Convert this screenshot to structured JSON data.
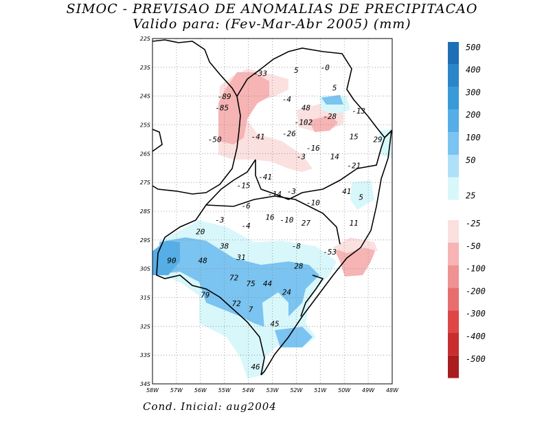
{
  "title_line1": "SIMOC - PREVISAO DE ANOMALIAS DE PRECIPITACAO",
  "title_line2": "Valido para: (Fev-Mar-Abr 2005) (mm)",
  "footer": "Cond. Inicial: aug2004",
  "map": {
    "lon_range": [
      -58,
      -48
    ],
    "lat_range": [
      -34,
      -22
    ],
    "x_ticks": [
      "58W",
      "57W",
      "56W",
      "55W",
      "54W",
      "53W",
      "52W",
      "51W",
      "50W",
      "49W",
      "48W"
    ],
    "y_ticks": [
      "22S",
      "23S",
      "24S",
      "25S",
      "26S",
      "27S",
      "28S",
      "29S",
      "30S",
      "31S",
      "32S",
      "33S",
      "34S"
    ],
    "grid": true,
    "anomaly_labels": [
      {
        "text": "-33",
        "lon": -53.5,
        "lat": -23.3
      },
      {
        "text": "5",
        "lon": -52.0,
        "lat": -23.2
      },
      {
        "text": "-0",
        "lon": -50.8,
        "lat": -23.1
      },
      {
        "text": "5",
        "lon": -50.4,
        "lat": -23.8
      },
      {
        "text": "-89",
        "lon": -55.0,
        "lat": -24.1
      },
      {
        "text": "-4",
        "lon": -52.4,
        "lat": -24.2
      },
      {
        "text": "-85",
        "lon": -55.1,
        "lat": -24.5
      },
      {
        "text": "48",
        "lon": -51.6,
        "lat": -24.5
      },
      {
        "text": "-13",
        "lon": -49.4,
        "lat": -24.6
      },
      {
        "text": "-28",
        "lon": -50.6,
        "lat": -24.8
      },
      {
        "text": "-102",
        "lon": -51.7,
        "lat": -25.0
      },
      {
        "text": "15",
        "lon": -49.6,
        "lat": -25.5
      },
      {
        "text": "29",
        "lon": -48.6,
        "lat": -25.6
      },
      {
        "text": "-50",
        "lon": -55.4,
        "lat": -25.6
      },
      {
        "text": "-41",
        "lon": -53.6,
        "lat": -25.5
      },
      {
        "text": "-26",
        "lon": -52.3,
        "lat": -25.4
      },
      {
        "text": "-16",
        "lon": -51.3,
        "lat": -25.9
      },
      {
        "text": "14",
        "lon": -50.4,
        "lat": -26.2
      },
      {
        "text": "-3",
        "lon": -51.8,
        "lat": -26.2
      },
      {
        "text": "-21",
        "lon": -49.6,
        "lat": -26.5
      },
      {
        "text": "-41",
        "lon": -53.3,
        "lat": -26.9
      },
      {
        "text": "-15",
        "lon": -54.2,
        "lat": -27.2
      },
      {
        "text": "41",
        "lon": -49.9,
        "lat": -27.4
      },
      {
        "text": "-14",
        "lon": -52.9,
        "lat": -27.5
      },
      {
        "text": "-3",
        "lon": -52.2,
        "lat": -27.4
      },
      {
        "text": "5",
        "lon": -49.3,
        "lat": -27.6
      },
      {
        "text": "-10",
        "lon": -51.3,
        "lat": -27.8
      },
      {
        "text": "-6",
        "lon": -54.1,
        "lat": -27.9
      },
      {
        "text": "-3",
        "lon": -55.2,
        "lat": -28.4
      },
      {
        "text": "16",
        "lon": -53.1,
        "lat": -28.3
      },
      {
        "text": "-10",
        "lon": -52.4,
        "lat": -28.4
      },
      {
        "text": "27",
        "lon": -51.6,
        "lat": -28.5
      },
      {
        "text": "11",
        "lon": -49.6,
        "lat": -28.5
      },
      {
        "text": "-4",
        "lon": -54.1,
        "lat": -28.6
      },
      {
        "text": "20",
        "lon": -56.0,
        "lat": -28.8
      },
      {
        "text": "38",
        "lon": -55.0,
        "lat": -29.3
      },
      {
        "text": "-8",
        "lon": -52.0,
        "lat": -29.3
      },
      {
        "text": "-53",
        "lon": -50.6,
        "lat": -29.5
      },
      {
        "text": "31",
        "lon": -54.3,
        "lat": -29.7
      },
      {
        "text": "90",
        "lon": -57.2,
        "lat": -29.8
      },
      {
        "text": "48",
        "lon": -55.9,
        "lat": -29.8
      },
      {
        "text": "28",
        "lon": -51.9,
        "lat": -30.0
      },
      {
        "text": "72",
        "lon": -54.6,
        "lat": -30.4
      },
      {
        "text": "75",
        "lon": -53.9,
        "lat": -30.6
      },
      {
        "text": "44",
        "lon": -53.2,
        "lat": -30.6
      },
      {
        "text": "24",
        "lon": -52.4,
        "lat": -30.9
      },
      {
        "text": "79",
        "lon": -55.8,
        "lat": -31.0
      },
      {
        "text": "72",
        "lon": -54.5,
        "lat": -31.3
      },
      {
        "text": "7",
        "lon": -53.9,
        "lat": -31.5
      },
      {
        "text": "45",
        "lon": -52.9,
        "lat": -32.0
      },
      {
        "text": "46",
        "lon": -53.7,
        "lat": -33.5
      }
    ]
  },
  "colorbar": {
    "positive": [
      {
        "label": "500",
        "color": "#1e6fb6"
      },
      {
        "label": "400",
        "color": "#2a86c8"
      },
      {
        "label": "300",
        "color": "#3a9ad8"
      },
      {
        "label": "200",
        "color": "#56aee6"
      },
      {
        "label": "100",
        "color": "#7bc3f0"
      },
      {
        "label": "50",
        "color": "#aee0fa"
      },
      {
        "label": "25",
        "color": "#d8f7fb"
      }
    ],
    "negative": [
      {
        "label": "-25",
        "color": "#fbe0e0"
      },
      {
        "label": "-50",
        "color": "#f6b4b4"
      },
      {
        "label": "-100",
        "color": "#ee9292"
      },
      {
        "label": "-200",
        "color": "#e86e6e"
      },
      {
        "label": "-300",
        "color": "#df4646"
      },
      {
        "label": "-400",
        "color": "#c82e2e"
      },
      {
        "label": "-500",
        "color": "#a81e1e"
      }
    ]
  }
}
